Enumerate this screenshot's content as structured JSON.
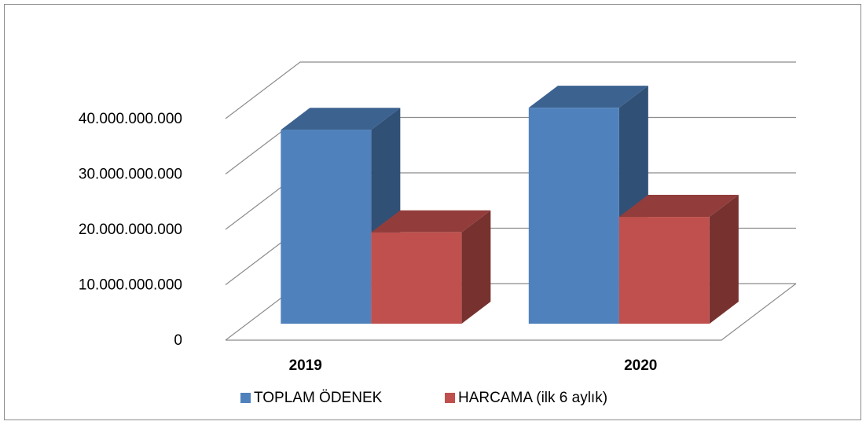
{
  "chart_data": {
    "type": "bar3d",
    "categories": [
      "2019",
      "2020"
    ],
    "series": [
      {
        "name": "TOPLAM ÖDENEK",
        "color": "#4f81bd",
        "values": [
          35000000000,
          39000000000
        ]
      },
      {
        "name": "HARCAMA (ilk 6 aylık)",
        "color": "#c0504d",
        "values": [
          16500000000,
          19300000000
        ]
      }
    ],
    "ylim": [
      0,
      40000000000
    ],
    "yticks": [
      0,
      {
        "value": 10000000000,
        "label": "10.000.000.000"
      },
      {
        "value": 20000000000,
        "label": "20.000.000.000"
      },
      {
        "value": 30000000000,
        "label": "30.000.000.000"
      },
      {
        "value": 40000000000,
        "label": "40.000.000.000"
      }
    ],
    "grid": true,
    "legend": "bottom"
  }
}
